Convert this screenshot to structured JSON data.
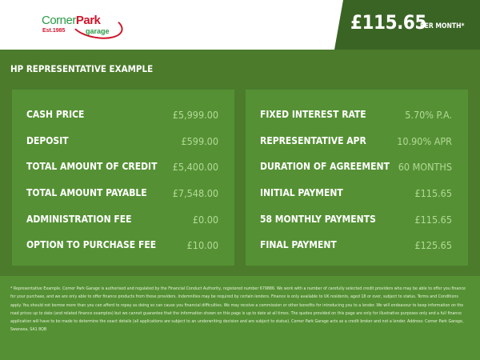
{
  "header": {
    "logo": {
      "corner": "Corner",
      "park": "Park",
      "established": "Est.1985",
      "garage": "garage"
    },
    "monthly_price": "£115.65",
    "per_month_label": "PER MONTH*"
  },
  "section_title": "HP REPRESENTATIVE EXAMPLE",
  "left_panel": [
    {
      "label": "CASH PRICE",
      "value": "£5,999.00"
    },
    {
      "label": "DEPOSIT",
      "value": "£599.00"
    },
    {
      "label": "TOTAL AMOUNT OF CREDIT",
      "value": "£5,400.00"
    },
    {
      "label": "TOTAL AMOUNT PAYABLE",
      "value": "£7,548.00"
    },
    {
      "label": "ADMINISTRATION FEE",
      "value": "£0.00"
    },
    {
      "label": "OPTION TO PURCHASE FEE",
      "value": "£10.00"
    }
  ],
  "right_panel": [
    {
      "label": "FIXED INTEREST RATE",
      "value": "5.70% P.A."
    },
    {
      "label": "REPRESENTATIVE APR",
      "value": "10.90% APR"
    },
    {
      "label": "DURATION OF AGREEMENT",
      "value": "60 MONTHS"
    },
    {
      "label": "INITIAL PAYMENT",
      "value": "£115.65"
    },
    {
      "label": "58 MONTHLY PAYMENTS",
      "value": "£115.65"
    },
    {
      "label": "FINAL PAYMENT",
      "value": "£125.65"
    }
  ],
  "disclaimer": "* Representative Example. Corner Park Garage is authorised and regulated by the Financial Conduct Authority, registered number 679886. We work with a number of carefully selected credit providers who may be able to offer you finance for your purchase, and we are only able to offer finance products from these providers. Indemnities may be required by certain lenders. Finance is only available to UK residents, aged 18 or over, subject to status. Terms and Conditions apply. You should not borrow more than you can afford to repay as doing so can cause you financial difficulties. We may receive a commission or other benefits for introducing you to a lender. We will endeavour to keep information on the road prices up to date (and related finance examples) but we cannot guarantee that the information shown on this page is up to date at all times. The quotes provided on this page are only for illustrative purposes only and a full finance application will have to be made to determine the exact details (all applications are subject to an underwriting decision and are subject to status). Corner Park Garage acts as a credit broker and not a lender. Address: Corner Park Garage, Swansea, SA1 8QB",
  "colors": {
    "brand_green": "#4b7b2b",
    "dark_green": "#3a6424",
    "panel_green": "#559134",
    "logo_red": "#d0142a"
  }
}
